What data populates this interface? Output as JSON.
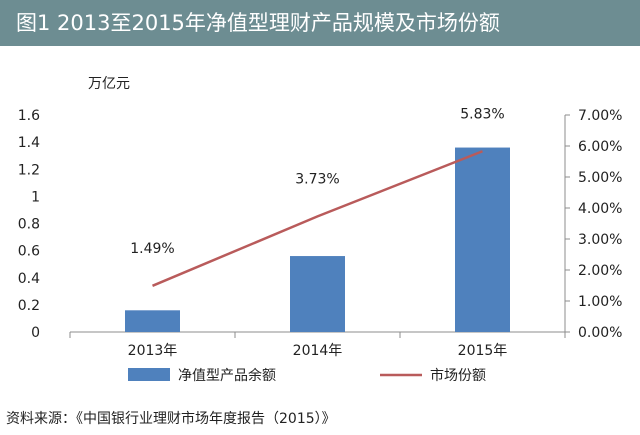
{
  "header": {
    "title": "图1  2013至2015年净值型理财产品规模及市场份额"
  },
  "chart_data": {
    "type": "bar",
    "title": "图1  2013至2015年净值型理财产品规模及市场份额",
    "categories": [
      "2013年",
      "2014年",
      "2015年"
    ],
    "y_unit_label": "万亿元",
    "left_axis": {
      "ylim": [
        0,
        1.6
      ],
      "ticks": [
        "0",
        "0.2",
        "0.4",
        "0.6",
        "0.8",
        "1",
        "1.2",
        "1.4",
        "1.6"
      ],
      "tick_values": [
        0,
        0.2,
        0.4,
        0.6,
        0.8,
        1.0,
        1.2,
        1.4,
        1.6
      ]
    },
    "right_axis": {
      "ylim": [
        0,
        0.07
      ],
      "ticks": [
        "0.00%",
        "1.00%",
        "2.00%",
        "3.00%",
        "4.00%",
        "5.00%",
        "6.00%",
        "7.00%"
      ],
      "tick_values": [
        0,
        0.01,
        0.02,
        0.03,
        0.04,
        0.05,
        0.06,
        0.07
      ]
    },
    "series": [
      {
        "name": "净值型产品余额",
        "type": "bar",
        "axis": "left",
        "color": "#4f81bd",
        "values": [
          0.16,
          0.56,
          1.36
        ]
      },
      {
        "name": "市场份额",
        "type": "line",
        "axis": "right",
        "color": "#b95b5b",
        "values": [
          0.0149,
          0.0373,
          0.0583
        ],
        "labels": [
          "1.49%",
          "3.73%",
          "5.83%"
        ]
      }
    ],
    "legend_position": "bottom",
    "grid": false
  },
  "footer": {
    "source": "资料来源：《中国银行业理财市场年度报告（2015）》"
  }
}
